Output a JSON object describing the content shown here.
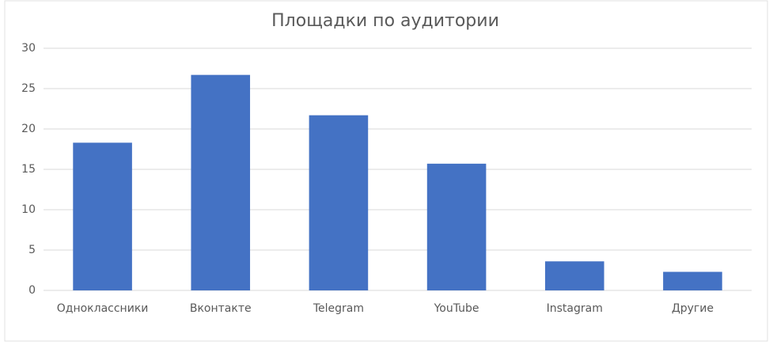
{
  "chart_data": {
    "type": "bar",
    "title": "Площадки по аудитории",
    "categories": [
      "Одноклассники",
      "Вконтакте",
      "Telegram",
      "YouTube",
      "Instagram",
      "Другие"
    ],
    "values": [
      18.3,
      26.7,
      21.7,
      15.7,
      3.6,
      2.3
    ],
    "color": "#4472c4",
    "ylim": [
      0,
      30
    ],
    "yticks": [
      0,
      5,
      10,
      15,
      20,
      25,
      30
    ],
    "grid": true
  }
}
